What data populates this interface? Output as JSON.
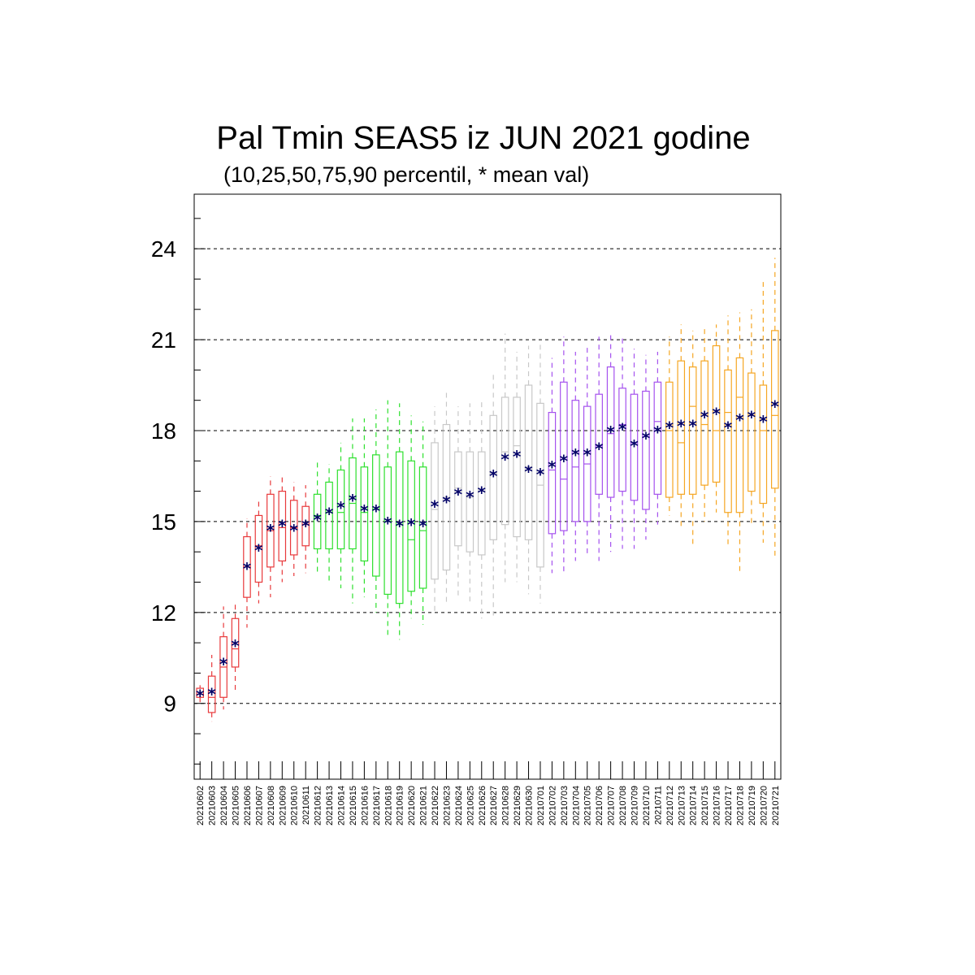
{
  "chart_data": {
    "type": "box",
    "title": "Pal Tmin SEAS5 iz JUN 2021 godine",
    "subtitle": "(10,25,50,75,90 percentil, * mean val)",
    "ylim": [
      6.5,
      25.8
    ],
    "yticks": [
      9,
      12,
      15,
      18,
      21,
      24
    ],
    "grid": "horizontal dashed",
    "colors": {
      "red": "#e8393b",
      "green": "#2ee02e",
      "gray": "#c8c8c8",
      "purple": "#a552ee",
      "orange": "#f5a623",
      "mean": "#000066",
      "axis": "#000000"
    },
    "categories": [
      "20210602",
      "20210603",
      "20210604",
      "20210605",
      "20210606",
      "20210607",
      "20210608",
      "20210609",
      "20210610",
      "20210611",
      "20210612",
      "20210613",
      "20210614",
      "20210615",
      "20210616",
      "20210617",
      "20210618",
      "20210619",
      "20210620",
      "20210621",
      "20210622",
      "20210623",
      "20210624",
      "20210625",
      "20210626",
      "20210627",
      "20210628",
      "20210629",
      "20210630",
      "20210701",
      "20210702",
      "20210703",
      "20210704",
      "20210705",
      "20210706",
      "20210707",
      "20210708",
      "20210709",
      "20210710",
      "20210711",
      "20210712",
      "20210713",
      "20210714",
      "20210715",
      "20210716",
      "20210717",
      "20210718",
      "20210719",
      "20210720",
      "20210721"
    ],
    "boxes": [
      {
        "p10": 9.0,
        "p25": 9.2,
        "p50": 9.3,
        "p75": 9.5,
        "p90": 9.6,
        "mean": 9.3,
        "color": "red"
      },
      {
        "p10": 8.4,
        "p25": 8.7,
        "p50": 9.2,
        "p75": 9.9,
        "p90": 10.6,
        "mean": 9.35,
        "color": "red"
      },
      {
        "p10": 8.8,
        "p25": 9.2,
        "p50": 10.2,
        "p75": 11.2,
        "p90": 12.2,
        "mean": 10.35,
        "color": "red"
      },
      {
        "p10": 9.4,
        "p25": 10.2,
        "p50": 10.8,
        "p75": 11.8,
        "p90": 12.3,
        "mean": 10.95,
        "color": "red"
      },
      {
        "p10": 11.5,
        "p25": 12.5,
        "p50": 13.5,
        "p75": 14.5,
        "p90": 15.1,
        "mean": 13.5,
        "color": "red"
      },
      {
        "p10": 12.3,
        "p25": 13.0,
        "p50": 14.2,
        "p75": 15.2,
        "p90": 15.7,
        "mean": 14.1,
        "color": "red"
      },
      {
        "p10": 12.5,
        "p25": 13.5,
        "p50": 14.7,
        "p75": 15.9,
        "p90": 16.5,
        "mean": 14.75,
        "color": "red"
      },
      {
        "p10": 13.0,
        "p25": 13.7,
        "p50": 14.8,
        "p75": 16.0,
        "p90": 16.5,
        "mean": 14.9,
        "color": "red"
      },
      {
        "p10": 13.2,
        "p25": 13.9,
        "p50": 14.8,
        "p75": 15.7,
        "p90": 16.3,
        "mean": 14.75,
        "color": "red"
      },
      {
        "p10": 13.3,
        "p25": 14.2,
        "p50": 14.9,
        "p75": 15.5,
        "p90": 16.2,
        "mean": 14.9,
        "color": "red"
      },
      {
        "p10": 13.3,
        "p25": 14.1,
        "p50": 15.2,
        "p75": 15.9,
        "p90": 17.0,
        "mean": 15.1,
        "color": "green"
      },
      {
        "p10": 13.0,
        "p25": 14.1,
        "p50": 15.3,
        "p75": 16.3,
        "p90": 16.9,
        "mean": 15.3,
        "color": "green"
      },
      {
        "p10": 12.8,
        "p25": 14.1,
        "p50": 15.3,
        "p75": 16.7,
        "p90": 17.6,
        "mean": 15.5,
        "color": "green"
      },
      {
        "p10": 12.3,
        "p25": 14.1,
        "p50": 15.6,
        "p75": 17.1,
        "p90": 18.4,
        "mean": 15.75,
        "color": "green"
      },
      {
        "p10": 12.5,
        "p25": 13.7,
        "p50": 15.3,
        "p75": 16.8,
        "p90": 18.4,
        "mean": 15.4,
        "color": "green"
      },
      {
        "p10": 12.0,
        "p25": 13.2,
        "p50": 15.4,
        "p75": 17.2,
        "p90": 18.7,
        "mean": 15.4,
        "color": "green"
      },
      {
        "p10": 11.2,
        "p25": 12.6,
        "p50": 15.0,
        "p75": 16.8,
        "p90": 19.0,
        "mean": 15.0,
        "color": "green"
      },
      {
        "p10": 11.1,
        "p25": 12.3,
        "p50": 14.9,
        "p75": 17.3,
        "p90": 18.9,
        "mean": 14.9,
        "color": "green"
      },
      {
        "p10": 11.8,
        "p25": 12.7,
        "p50": 14.4,
        "p75": 17.0,
        "p90": 18.5,
        "mean": 14.95,
        "color": "green"
      },
      {
        "p10": 11.6,
        "p25": 12.8,
        "p50": 14.7,
        "p75": 16.8,
        "p90": 18.3,
        "mean": 14.9,
        "color": "green"
      },
      {
        "p10": 12.0,
        "p25": 13.1,
        "p50": 15.4,
        "p75": 17.6,
        "p90": 18.8,
        "mean": 15.55,
        "color": "gray"
      },
      {
        "p10": 12.3,
        "p25": 13.4,
        "p50": 15.8,
        "p75": 18.2,
        "p90": 19.3,
        "mean": 15.7,
        "color": "gray"
      },
      {
        "p10": 12.5,
        "p25": 14.2,
        "p50": 16.1,
        "p75": 17.3,
        "p90": 18.8,
        "mean": 15.95,
        "color": "gray"
      },
      {
        "p10": 12.3,
        "p25": 14.0,
        "p50": 15.8,
        "p75": 17.3,
        "p90": 18.9,
        "mean": 15.85,
        "color": "gray"
      },
      {
        "p10": 11.8,
        "p25": 13.9,
        "p50": 16.0,
        "p75": 17.3,
        "p90": 19.0,
        "mean": 16.0,
        "color": "gray"
      },
      {
        "p10": 11.9,
        "p25": 14.4,
        "p50": 16.6,
        "p75": 18.5,
        "p90": 19.9,
        "mean": 16.55,
        "color": "gray"
      },
      {
        "p10": 13.0,
        "p25": 14.9,
        "p50": 17.3,
        "p75": 19.1,
        "p90": 21.2,
        "mean": 17.1,
        "color": "gray"
      },
      {
        "p10": 13.0,
        "p25": 14.5,
        "p50": 17.5,
        "p75": 19.1,
        "p90": 20.6,
        "mean": 17.2,
        "color": "gray"
      },
      {
        "p10": 12.6,
        "p25": 14.4,
        "p50": 16.8,
        "p75": 19.5,
        "p90": 20.8,
        "mean": 16.7,
        "color": "gray"
      },
      {
        "p10": 12.3,
        "p25": 13.5,
        "p50": 16.2,
        "p75": 18.9,
        "p90": 20.9,
        "mean": 16.6,
        "color": "gray"
      },
      {
        "p10": 13.3,
        "p25": 14.6,
        "p50": 16.7,
        "p75": 18.6,
        "p90": 20.4,
        "mean": 16.85,
        "color": "purple"
      },
      {
        "p10": 13.3,
        "p25": 14.7,
        "p50": 16.4,
        "p75": 19.6,
        "p90": 21.1,
        "mean": 17.05,
        "color": "purple"
      },
      {
        "p10": 13.7,
        "p25": 15.0,
        "p50": 16.8,
        "p75": 19.0,
        "p90": 20.6,
        "mean": 17.25,
        "color": "purple"
      },
      {
        "p10": 13.9,
        "p25": 15.0,
        "p50": 16.9,
        "p75": 18.8,
        "p90": 20.8,
        "mean": 17.25,
        "color": "purple"
      },
      {
        "p10": 13.7,
        "p25": 15.9,
        "p50": 17.5,
        "p75": 19.2,
        "p90": 21.1,
        "mean": 17.45,
        "color": "purple"
      },
      {
        "p10": 14.0,
        "p25": 15.8,
        "p50": 17.9,
        "p75": 20.1,
        "p90": 21.2,
        "mean": 18.0,
        "color": "purple"
      },
      {
        "p10": 14.1,
        "p25": 16.0,
        "p50": 18.2,
        "p75": 19.4,
        "p90": 21.1,
        "mean": 18.1,
        "color": "purple"
      },
      {
        "p10": 14.1,
        "p25": 15.7,
        "p50": 17.6,
        "p75": 19.2,
        "p90": 20.7,
        "mean": 17.55,
        "color": "purple"
      },
      {
        "p10": 14.4,
        "p25": 15.4,
        "p50": 17.8,
        "p75": 19.3,
        "p90": 20.5,
        "mean": 17.8,
        "color": "purple"
      },
      {
        "p10": 14.9,
        "p25": 15.9,
        "p50": 18.3,
        "p75": 19.6,
        "p90": 20.6,
        "mean": 18.0,
        "color": "purple"
      },
      {
        "p10": 15.2,
        "p25": 15.8,
        "p50": 18.0,
        "p75": 19.6,
        "p90": 21.1,
        "mean": 18.15,
        "color": "orange"
      },
      {
        "p10": 14.8,
        "p25": 15.9,
        "p50": 17.6,
        "p75": 20.3,
        "p90": 21.5,
        "mean": 18.2,
        "color": "orange"
      },
      {
        "p10": 14.2,
        "p25": 15.9,
        "p50": 18.8,
        "p75": 20.1,
        "p90": 21.3,
        "mean": 18.2,
        "color": "orange"
      },
      {
        "p10": 15.0,
        "p25": 16.2,
        "p50": 18.2,
        "p75": 20.3,
        "p90": 21.4,
        "mean": 18.5,
        "color": "orange"
      },
      {
        "p10": 15.3,
        "p25": 16.3,
        "p50": 18.0,
        "p75": 20.8,
        "p90": 21.5,
        "mean": 18.6,
        "color": "orange"
      },
      {
        "p10": 14.2,
        "p25": 15.3,
        "p50": 18.6,
        "p75": 20.0,
        "p90": 21.8,
        "mean": 18.15,
        "color": "orange"
      },
      {
        "p10": 13.3,
        "p25": 15.3,
        "p50": 19.1,
        "p75": 20.4,
        "p90": 21.9,
        "mean": 18.4,
        "color": "orange"
      },
      {
        "p10": 14.9,
        "p25": 16.0,
        "p50": 18.5,
        "p75": 19.9,
        "p90": 22.0,
        "mean": 18.5,
        "color": "orange"
      },
      {
        "p10": 14.3,
        "p25": 15.6,
        "p50": 18.0,
        "p75": 19.5,
        "p90": 22.9,
        "mean": 18.35,
        "color": "orange"
      },
      {
        "p10": 13.8,
        "p25": 16.1,
        "p50": 18.5,
        "p75": 21.3,
        "p90": 23.7,
        "mean": 18.85,
        "color": "orange"
      }
    ]
  }
}
